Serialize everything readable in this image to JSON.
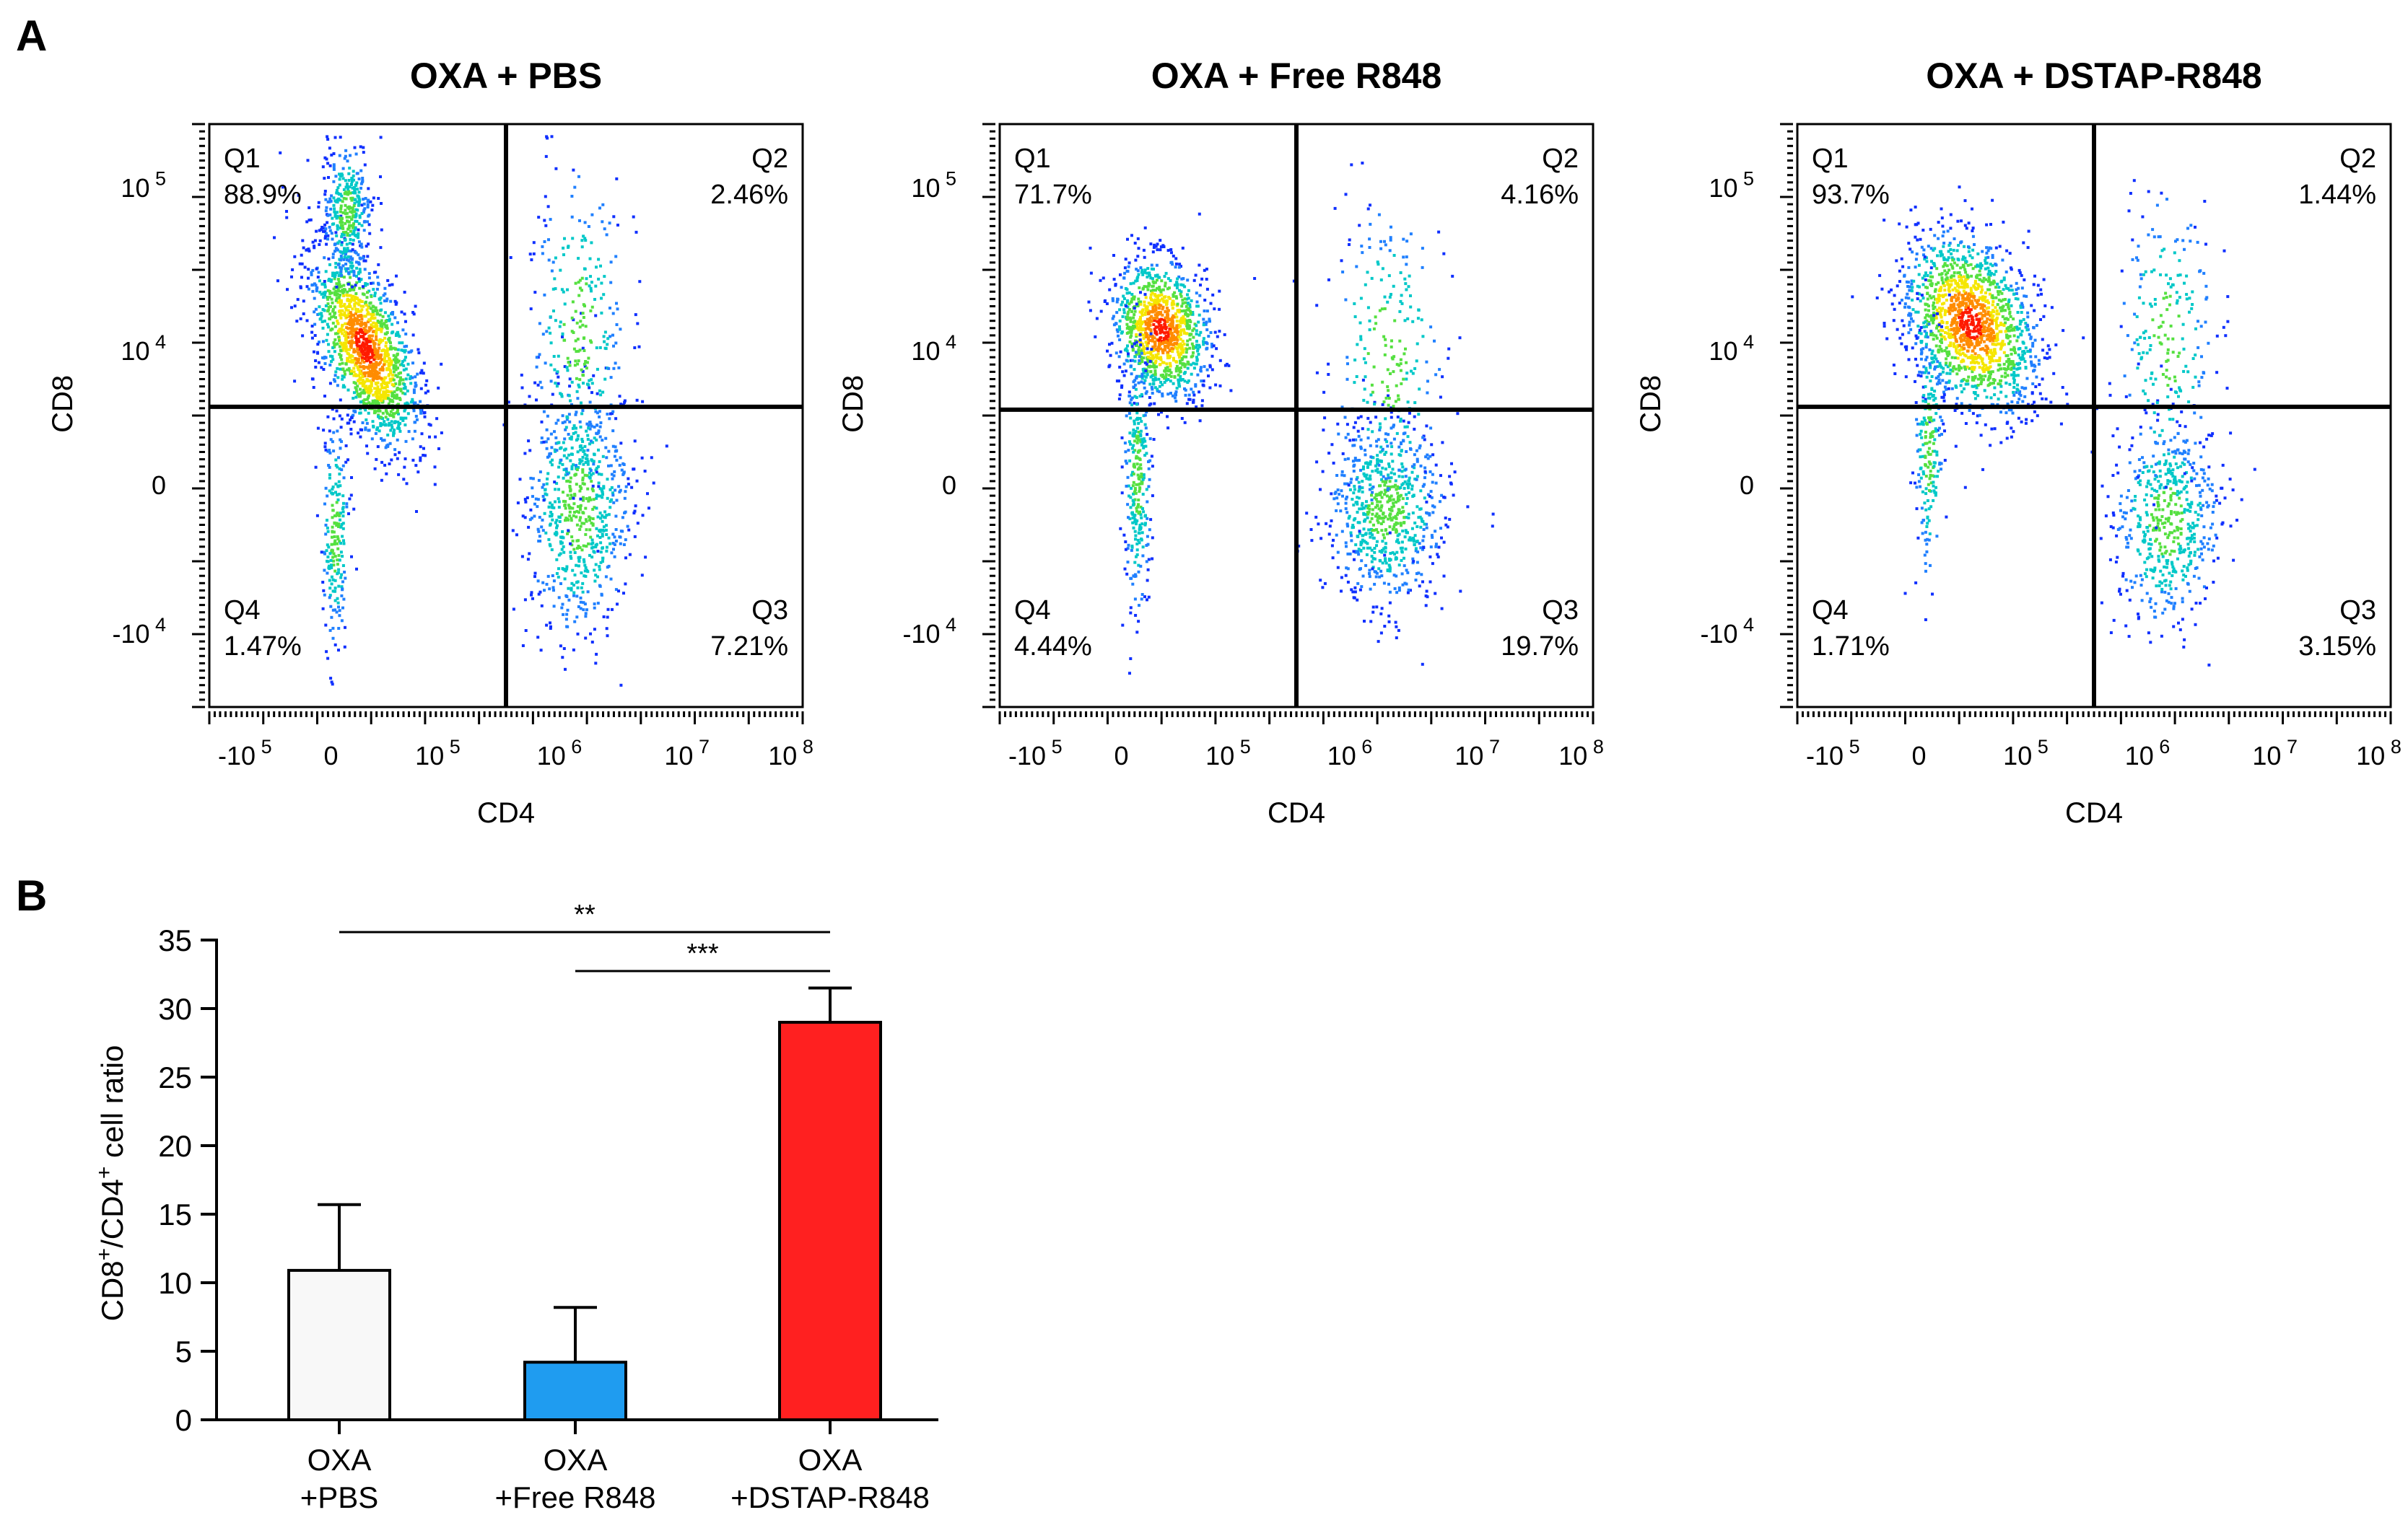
{
  "panel_a": {
    "label": "A",
    "x_axis_label": "CD4",
    "y_axis_label": "CD8",
    "x_ticks": [
      {
        "base": "-10",
        "exp": "5"
      },
      {
        "base": "0",
        "exp": ""
      },
      {
        "base": "10",
        "exp": "5"
      },
      {
        "base": "10",
        "exp": "6"
      },
      {
        "base": "10",
        "exp": "7"
      },
      {
        "base": "10",
        "exp": "8"
      }
    ],
    "y_ticks": [
      {
        "base": "10",
        "exp": "5"
      },
      {
        "base": "10",
        "exp": "4"
      },
      {
        "base": "0",
        "exp": ""
      },
      {
        "base": "-10",
        "exp": "4"
      }
    ],
    "plots": [
      {
        "title": "OXA + PBS",
        "quadrants": [
          {
            "name": "Q1",
            "value": "88.9%"
          },
          {
            "name": "Q2",
            "value": "2.46%"
          },
          {
            "name": "Q3",
            "value": "7.21%"
          },
          {
            "name": "Q4",
            "value": "1.47%"
          }
        ]
      },
      {
        "title": "OXA + Free R848",
        "quadrants": [
          {
            "name": "Q1",
            "value": "71.7%"
          },
          {
            "name": "Q2",
            "value": "4.16%"
          },
          {
            "name": "Q3",
            "value": "19.7%"
          },
          {
            "name": "Q4",
            "value": "4.44%"
          }
        ]
      },
      {
        "title": "OXA + DSTAP-R848",
        "quadrants": [
          {
            "name": "Q1",
            "value": "93.7%"
          },
          {
            "name": "Q2",
            "value": "1.44%"
          },
          {
            "name": "Q3",
            "value": "3.15%"
          },
          {
            "name": "Q4",
            "value": "1.71%"
          }
        ]
      }
    ]
  },
  "chart_data": {
    "type": "bar",
    "panel_label": "B",
    "ylabel_parts": [
      "CD8",
      "+",
      "/CD4",
      "+",
      " cell ratio"
    ],
    "ylim": [
      0,
      35
    ],
    "y_ticks": [
      0,
      5,
      10,
      15,
      20,
      25,
      30,
      35
    ],
    "categories": [
      {
        "line1": "OXA",
        "line2": "+PBS"
      },
      {
        "line1": "OXA",
        "line2": "+Free R848"
      },
      {
        "line1": "OXA",
        "line2": "+DSTAP-R848"
      }
    ],
    "values": [
      10.9,
      4.2,
      29.0
    ],
    "error_upper": [
      15.7,
      8.2,
      31.5
    ],
    "colors": [
      "#f8f8f8",
      "#1f9cf0",
      "#ff2020"
    ],
    "significance": [
      {
        "from": 0,
        "to": 2,
        "label": "**"
      },
      {
        "from": 1,
        "to": 2,
        "label": "***"
      }
    ]
  }
}
